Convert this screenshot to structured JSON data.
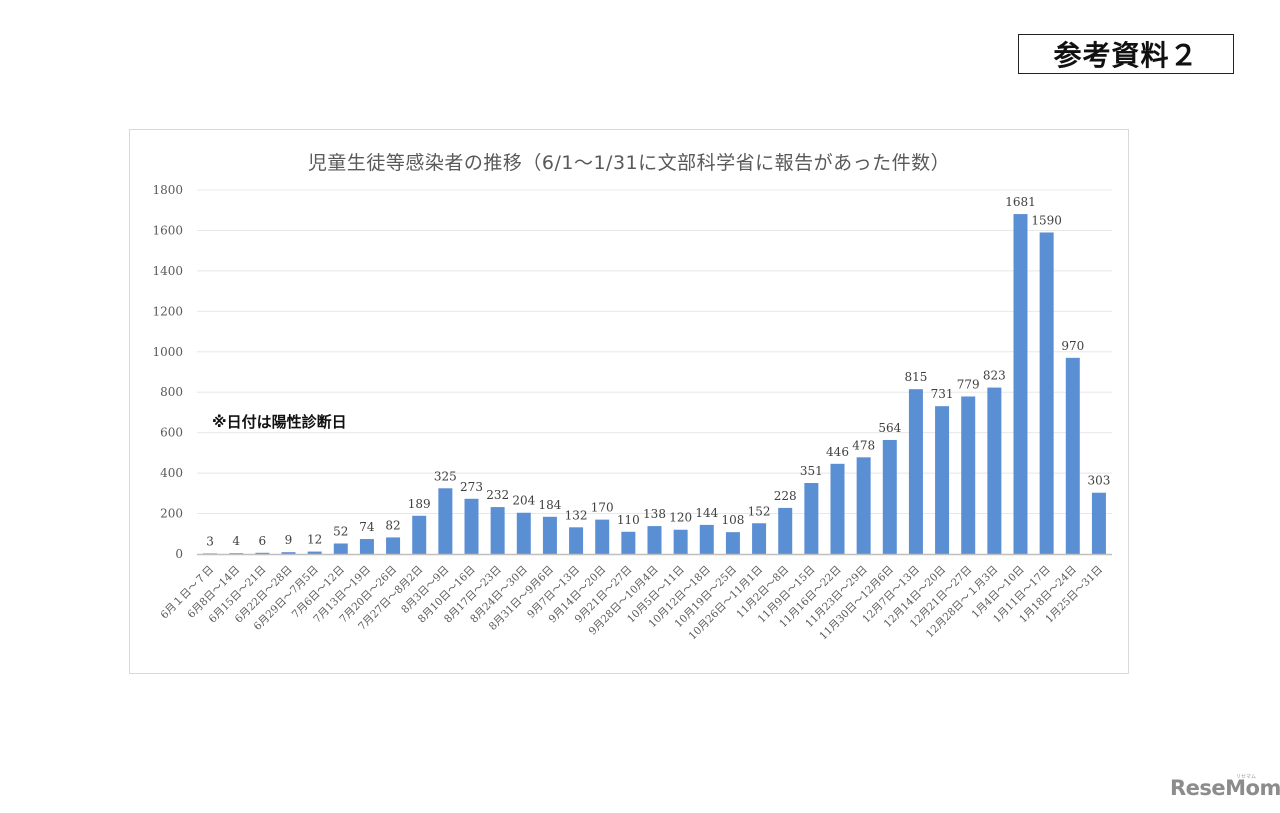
{
  "header": {
    "reference_label": "参考資料２"
  },
  "note": "※日付は陽性診断日",
  "logo": {
    "text": "ReseMom",
    "sub": "リセマム"
  },
  "colors": {
    "bar": "#5b8fd4",
    "grid": "#e8e8e8",
    "axis": "#bfbfbf"
  },
  "chart_data": {
    "type": "bar",
    "title": "児童生徒等感染者の推移（6/1～1/31に文部科学省に報告があった件数）",
    "xlabel": "",
    "ylabel": "",
    "ylim": [
      0,
      1800
    ],
    "yticks": [
      0,
      200,
      400,
      600,
      800,
      1000,
      1200,
      1400,
      1600,
      1800
    ],
    "grid": true,
    "legend": null,
    "annotations": [
      "※日付は陽性診断日"
    ],
    "categories": [
      "6月１日～７日",
      "6月8日～14日",
      "6月15日～21日",
      "6月22日～28日",
      "6月29日～7月5日",
      "7月6日～12日",
      "7月13日～19日",
      "7月20日～26日",
      "7月27日～8月2日",
      "8月3日～9日",
      "8月10日～16日",
      "8月17日～23日",
      "8月24日～30日",
      "8月31日～9月6日",
      "9月7日～13日",
      "9月14日～20日",
      "9月21日～27日",
      "9月28日～10月4日",
      "10月5日～11日",
      "10月12日～18日",
      "10月19日～25日",
      "10月26日～11月1日",
      "11月2日～8日",
      "11月9日～15日",
      "11月16日～22日",
      "11月23日～29日",
      "11月30日～12月6日",
      "12月7日～13日",
      "12月14日～20日",
      "12月21日～27日",
      "12月28日～１月3日",
      "1月4日～10日",
      "1月11日～17日",
      "1月18日～24日",
      "1月25日～31日"
    ],
    "values": [
      3,
      4,
      6,
      9,
      12,
      52,
      74,
      82,
      189,
      325,
      273,
      232,
      204,
      184,
      132,
      170,
      110,
      138,
      120,
      144,
      108,
      152,
      228,
      351,
      446,
      478,
      564,
      815,
      731,
      779,
      823,
      1681,
      1590,
      970,
      303
    ]
  }
}
